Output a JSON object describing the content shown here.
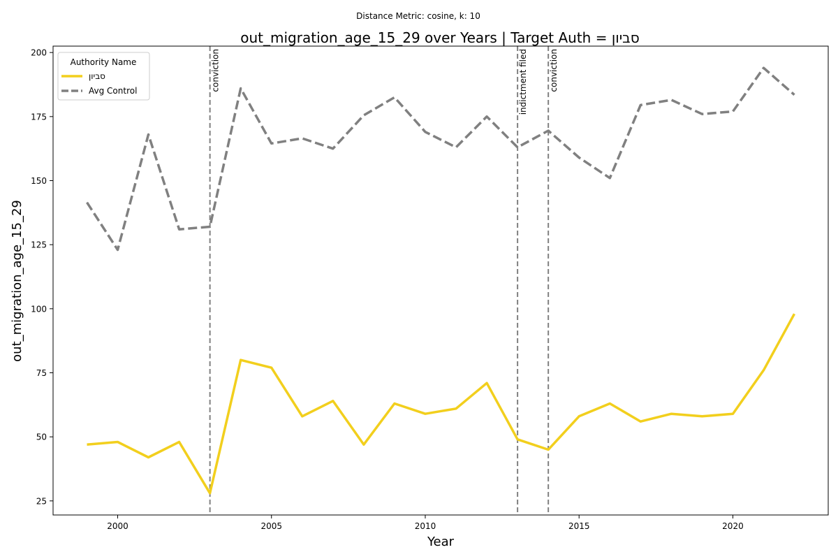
{
  "chart_data": {
    "type": "line",
    "suptitle": "Distance Metric: cosine, k: 10",
    "title": "out_migration_age_15_29 over Years | Target Auth = סביון",
    "xlabel": "Year",
    "ylabel": "out_migration_age_15_29",
    "xlim": [
      1997.9,
      2023.1
    ],
    "ylim": [
      19.5,
      202.5
    ],
    "xticks": [
      2000,
      2005,
      2010,
      2015,
      2020
    ],
    "yticks": [
      25,
      50,
      75,
      100,
      125,
      150,
      175,
      200
    ],
    "grid": false,
    "legend": {
      "title": "Authority Name",
      "position": "upper-left"
    },
    "x": [
      1999,
      2000,
      2001,
      2002,
      2003,
      2004,
      2005,
      2006,
      2007,
      2008,
      2009,
      2010,
      2011,
      2012,
      2013,
      2014,
      2015,
      2016,
      2017,
      2018,
      2019,
      2020,
      2021,
      2022
    ],
    "series": [
      {
        "name": "סביון",
        "color": "#f2cf1d",
        "style": "solid",
        "values": [
          47,
          48,
          42,
          48,
          28,
          80,
          77,
          58,
          64,
          47,
          63,
          59,
          61,
          71,
          49,
          45,
          58,
          63,
          56,
          59,
          58,
          59,
          76,
          98
        ]
      },
      {
        "name": "Avg Control",
        "color": "#808080",
        "style": "dashed",
        "values": [
          141.5,
          123,
          168,
          131,
          132,
          186,
          164.5,
          166.5,
          162.5,
          175.5,
          182.5,
          169,
          163,
          175,
          163,
          169.5,
          159,
          151,
          179.5,
          181.5,
          176,
          177,
          194,
          183.5
        ]
      }
    ],
    "events": [
      {
        "x": 2003,
        "label": "conviction"
      },
      {
        "x": 2013,
        "label": "indictment filed"
      },
      {
        "x": 2014,
        "label": "conviction"
      }
    ]
  }
}
